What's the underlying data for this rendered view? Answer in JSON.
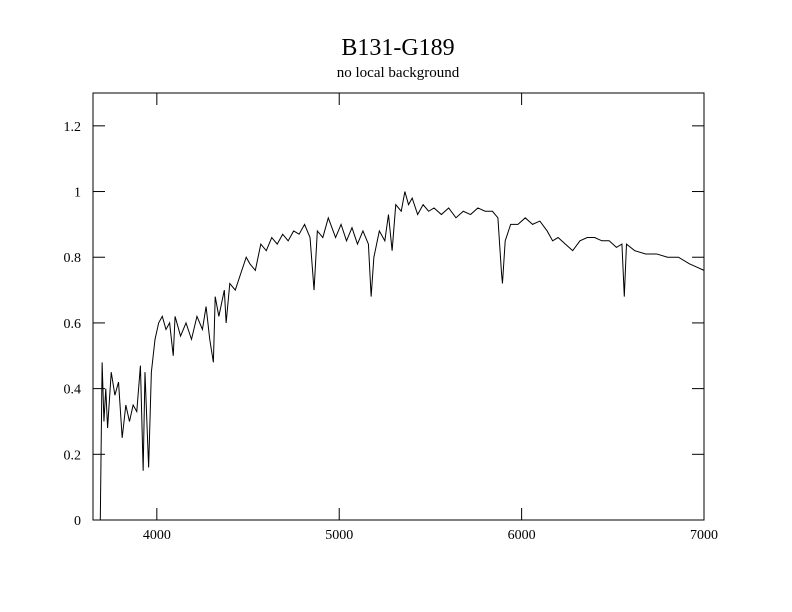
{
  "chart_data": {
    "type": "line",
    "title": "B131-G189",
    "subtitle": "no local background",
    "x": [
      3690,
      3700,
      3710,
      3720,
      3730,
      3750,
      3770,
      3790,
      3810,
      3830,
      3850,
      3870,
      3890,
      3910,
      3925,
      3935,
      3955,
      3970,
      3990,
      4010,
      4030,
      4050,
      4070,
      4090,
      4100,
      4130,
      4160,
      4190,
      4220,
      4250,
      4270,
      4290,
      4310,
      4320,
      4340,
      4370,
      4380,
      4400,
      4430,
      4460,
      4490,
      4510,
      4540,
      4570,
      4600,
      4630,
      4660,
      4690,
      4720,
      4750,
      4780,
      4810,
      4840,
      4862,
      4880,
      4910,
      4940,
      4960,
      4980,
      5010,
      5040,
      5070,
      5100,
      5130,
      5160,
      5175,
      5190,
      5220,
      5250,
      5270,
      5290,
      5310,
      5340,
      5360,
      5380,
      5400,
      5430,
      5460,
      5490,
      5520,
      5560,
      5600,
      5640,
      5680,
      5720,
      5760,
      5800,
      5840,
      5870,
      5890,
      5895,
      5910,
      5940,
      5980,
      6020,
      6060,
      6100,
      6140,
      6170,
      6200,
      6240,
      6280,
      6320,
      6360,
      6400,
      6440,
      6480,
      6520,
      6550,
      6563,
      6575,
      6620,
      6680,
      6740,
      6800,
      6860,
      6920,
      6960,
      7000
    ],
    "series": [
      {
        "color": "#000000",
        "values": [
          0.0,
          0.48,
          0.3,
          0.4,
          0.28,
          0.45,
          0.38,
          0.42,
          0.25,
          0.35,
          0.3,
          0.35,
          0.33,
          0.47,
          0.15,
          0.45,
          0.16,
          0.45,
          0.55,
          0.6,
          0.62,
          0.58,
          0.6,
          0.5,
          0.62,
          0.56,
          0.6,
          0.55,
          0.62,
          0.58,
          0.65,
          0.55,
          0.48,
          0.68,
          0.62,
          0.7,
          0.6,
          0.72,
          0.7,
          0.75,
          0.8,
          0.78,
          0.76,
          0.84,
          0.82,
          0.86,
          0.84,
          0.87,
          0.85,
          0.88,
          0.87,
          0.9,
          0.86,
          0.7,
          0.88,
          0.86,
          0.92,
          0.89,
          0.86,
          0.9,
          0.85,
          0.89,
          0.84,
          0.88,
          0.84,
          0.68,
          0.8,
          0.88,
          0.85,
          0.93,
          0.82,
          0.96,
          0.94,
          1.0,
          0.96,
          0.98,
          0.93,
          0.96,
          0.94,
          0.95,
          0.93,
          0.95,
          0.92,
          0.94,
          0.93,
          0.95,
          0.94,
          0.94,
          0.92,
          0.75,
          0.72,
          0.85,
          0.9,
          0.9,
          0.92,
          0.9,
          0.91,
          0.88,
          0.85,
          0.86,
          0.84,
          0.82,
          0.85,
          0.86,
          0.86,
          0.85,
          0.85,
          0.83,
          0.84,
          0.68,
          0.84,
          0.82,
          0.81,
          0.81,
          0.8,
          0.8,
          0.78,
          0.77,
          0.76
        ]
      }
    ],
    "xlim": [
      3650,
      7000
    ],
    "xticks": [
      4000,
      5000,
      6000,
      7000
    ],
    "ylim": [
      0,
      1.3
    ],
    "yticks": [
      0,
      0.2,
      0.4,
      0.6,
      0.8,
      1,
      1.2
    ]
  }
}
